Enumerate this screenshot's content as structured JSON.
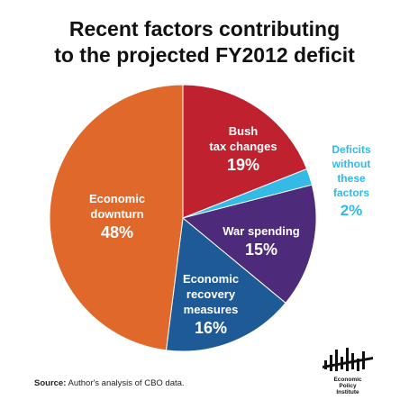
{
  "title_line1": "Recent factors contributing",
  "title_line2": "to the projected FY2012 deficit",
  "chart_data": {
    "type": "pie",
    "title": "Recent factors contributing to the projected FY2012 deficit",
    "start_angle_deg": 0,
    "direction": "clockwise",
    "slices": [
      {
        "label_lines": [
          "Bush",
          "tax changes"
        ],
        "value": 19,
        "value_label": "19%",
        "color": "#c0212e"
      },
      {
        "label_lines": [
          "Deficits",
          "without",
          "these",
          "factors"
        ],
        "value": 2,
        "value_label": "2%",
        "color": "#35b9e6"
      },
      {
        "label_lines": [
          "War spending"
        ],
        "value": 15,
        "value_label": "15%",
        "color": "#4e2a7b"
      },
      {
        "label_lines": [
          "Economic",
          "recovery",
          "measures"
        ],
        "value": 16,
        "value_label": "16%",
        "color": "#1e5a96"
      },
      {
        "label_lines": [
          "Economic",
          "downturn"
        ],
        "value": 48,
        "value_label": "48%",
        "color": "#e0682a"
      }
    ]
  },
  "source_label": "Source:",
  "source_text": " Author's analysis of CBO data.",
  "logo_lines": [
    "Economic",
    "Policy",
    "Institute"
  ]
}
